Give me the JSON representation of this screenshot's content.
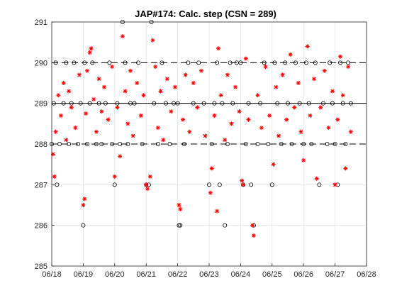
{
  "chart_data": {
    "type": "scatter",
    "title": "JAP#174: Calc. step (CSN = 289)",
    "xlabel": "",
    "ylabel": "",
    "x_ticks": [
      "06/18",
      "06/19",
      "06/20",
      "06/21",
      "06/22",
      "06/23",
      "06/24",
      "06/25",
      "06/26",
      "06/27",
      "06/28"
    ],
    "xlim": [
      "06/18",
      "06/28"
    ],
    "y_ticks": [
      285,
      286,
      287,
      288,
      289,
      290,
      291
    ],
    "ylim": [
      285,
      291
    ],
    "grid": true,
    "legend": "none",
    "reference_lines": [
      {
        "y": 289,
        "style": "solid",
        "color": "#000000"
      },
      {
        "y": 288,
        "style": "dashed",
        "color": "#000000"
      },
      {
        "y": 290,
        "style": "dashed",
        "color": "#000000"
      }
    ],
    "series": [
      {
        "marker": "circle",
        "color": "#000000",
        "points": [
          [
            "06/18 00:00",
            288
          ],
          [
            "06/18 01:30",
            289
          ],
          [
            "06/18 03:00",
            290
          ],
          [
            "06/18 04:00",
            287
          ],
          [
            "06/18 06:00",
            288
          ],
          [
            "06/18 09:00",
            289
          ],
          [
            "06/18 11:00",
            290
          ],
          [
            "06/18 13:00",
            288
          ],
          [
            "06/18 15:00",
            289
          ],
          [
            "06/18 17:00",
            290
          ],
          [
            "06/18 20:00",
            288
          ],
          [
            "06/18 22:00",
            289
          ],
          [
            "06/19 00:00",
            286
          ],
          [
            "06/19 01:00",
            290
          ],
          [
            "06/19 03:00",
            288
          ],
          [
            "06/19 05:00",
            289
          ],
          [
            "06/19 07:00",
            290
          ],
          [
            "06/19 10:00",
            288
          ],
          [
            "06/19 12:00",
            289
          ],
          [
            "06/19 14:00",
            288
          ],
          [
            "06/19 17:00",
            289
          ],
          [
            "06/19 20:00",
            290
          ],
          [
            "06/19 22:00",
            288
          ],
          [
            "06/20 00:00",
            287
          ],
          [
            "06/20 02:00",
            289
          ],
          [
            "06/20 04:00",
            288
          ],
          [
            "06/20 06:00",
            291
          ],
          [
            "06/20 08:00",
            290
          ],
          [
            "06/20 10:00",
            288
          ],
          [
            "06/20 12:00",
            289
          ],
          [
            "06/20 15:00",
            289
          ],
          [
            "06/20 18:00",
            290
          ],
          [
            "06/20 21:00",
            288
          ],
          [
            "06/21 00:00",
            287
          ],
          [
            "06/21 02:00",
            287
          ],
          [
            "06/21 04:00",
            291
          ],
          [
            "06/21 06:00",
            289
          ],
          [
            "06/21 09:00",
            288
          ],
          [
            "06/21 12:00",
            290
          ],
          [
            "06/21 15:00",
            289
          ],
          [
            "06/21 18:00",
            288
          ],
          [
            "06/21 21:00",
            289
          ],
          [
            "06/22 00:00",
            289
          ],
          [
            "06/22 01:00",
            286
          ],
          [
            "06/22 02:00",
            286
          ],
          [
            "06/22 05:00",
            288
          ],
          [
            "06/22 08:00",
            290
          ],
          [
            "06/22 12:00",
            289
          ],
          [
            "06/22 16:00",
            290
          ],
          [
            "06/22 20:00",
            289
          ],
          [
            "06/23 00:00",
            287
          ],
          [
            "06/23 02:00",
            288
          ],
          [
            "06/23 04:00",
            289
          ],
          [
            "06/23 06:00",
            290
          ],
          [
            "06/23 08:00",
            287
          ],
          [
            "06/23 10:00",
            289
          ],
          [
            "06/23 12:00",
            286
          ],
          [
            "06/23 14:00",
            288
          ],
          [
            "06/23 16:00",
            290
          ],
          [
            "06/23 18:00",
            289
          ],
          [
            "06/23 21:00",
            290
          ],
          [
            "06/24 00:00",
            290
          ],
          [
            "06/24 02:00",
            287
          ],
          [
            "06/24 04:00",
            288
          ],
          [
            "06/24 06:00",
            289
          ],
          [
            "06/24 08:00",
            287
          ],
          [
            "06/24 10:00",
            286
          ],
          [
            "06/24 13:00",
            288
          ],
          [
            "06/24 15:00",
            289
          ],
          [
            "06/24 18:00",
            290
          ],
          [
            "06/24 21:00",
            288
          ],
          [
            "06/25 00:00",
            287
          ],
          [
            "06/25 02:00",
            290
          ],
          [
            "06/25 04:00",
            289
          ],
          [
            "06/25 07:00",
            288
          ],
          [
            "06/25 10:00",
            290
          ],
          [
            "06/25 12:00",
            289
          ],
          [
            "06/25 15:00",
            288
          ],
          [
            "06/25 18:00",
            290
          ],
          [
            "06/25 21:00",
            289
          ],
          [
            "06/26 00:00",
            288
          ],
          [
            "06/26 02:00",
            290
          ],
          [
            "06/26 04:00",
            289
          ],
          [
            "06/26 06:00",
            288
          ],
          [
            "06/26 09:00",
            290
          ],
          [
            "06/26 12:00",
            287
          ],
          [
            "06/26 15:00",
            289
          ],
          [
            "06/26 18:00",
            288
          ],
          [
            "06/26 20:00",
            290
          ],
          [
            "06/26 22:00",
            289
          ],
          [
            "06/27 00:00",
            288
          ],
          [
            "06/27 02:00",
            287
          ],
          [
            "06/27 04:00",
            290
          ],
          [
            "06/27 06:00",
            289
          ],
          [
            "06/27 08:00",
            288
          ],
          [
            "06/27 10:00",
            290
          ],
          [
            "06/27 12:00",
            289
          ]
        ]
      },
      {
        "marker": "asterisk",
        "color": "#ff0000",
        "points": [
          [
            "06/18 01:00",
            287.75
          ],
          [
            "06/18 02:00",
            287.2
          ],
          [
            "06/18 03:00",
            288.3
          ],
          [
            "06/18 05:00",
            289.2
          ],
          [
            "06/18 07:00",
            288.7
          ],
          [
            "06/18 09:00",
            289.5
          ],
          [
            "06/18 11:00",
            288.1
          ],
          [
            "06/18 13:00",
            289.3
          ],
          [
            "06/18 15:00",
            288.9
          ],
          [
            "06/18 18:00",
            288.4
          ],
          [
            "06/18 21:00",
            289.7
          ],
          [
            "06/19 00:00",
            286.5
          ],
          [
            "06/19 01:00",
            286.65
          ],
          [
            "06/19 02:00",
            288.75
          ],
          [
            "06/19 03:00",
            289.8
          ],
          [
            "06/19 05:00",
            290.25
          ],
          [
            "06/19 06:00",
            290.35
          ],
          [
            "06/19 08:00",
            289.1
          ],
          [
            "06/19 10:00",
            288.3
          ],
          [
            "06/19 12:00",
            289.6
          ],
          [
            "06/19 14:00",
            288.8
          ],
          [
            "06/19 16:00",
            289.4
          ],
          [
            "06/19 19:00",
            288.6
          ],
          [
            "06/19 22:00",
            289.9
          ],
          [
            "06/20 00:00",
            287.2
          ],
          [
            "06/20 02:00",
            288.9
          ],
          [
            "06/20 04:00",
            287.7
          ],
          [
            "06/20 06:00",
            290.65
          ],
          [
            "06/20 08:00",
            289.3
          ],
          [
            "06/20 10:00",
            288.5
          ],
          [
            "06/20 12:00",
            289.8
          ],
          [
            "06/20 14:00",
            288.2
          ],
          [
            "06/20 17:00",
            289.5
          ],
          [
            "06/20 20:00",
            288.7
          ],
          [
            "06/20 22:00",
            289.2
          ],
          [
            "06/21 00:00",
            287.0
          ],
          [
            "06/21 01:00",
            286.9
          ],
          [
            "06/21 03:00",
            287.2
          ],
          [
            "06/21 05:00",
            290.55
          ],
          [
            "06/21 07:00",
            289.9
          ],
          [
            "06/21 09:00",
            288.4
          ],
          [
            "06/21 11:00",
            289.3
          ],
          [
            "06/21 13:00",
            288.1
          ],
          [
            "06/21 16:00",
            289.6
          ],
          [
            "06/21 19:00",
            288.8
          ],
          [
            "06/21 22:00",
            289.4
          ],
          [
            "06/22 01:00",
            286.5
          ],
          [
            "06/22 02:00",
            286.4
          ],
          [
            "06/22 04:00",
            288.6
          ],
          [
            "06/22 06:00",
            289.7
          ],
          [
            "06/22 09:00",
            288.3
          ],
          [
            "06/22 12:00",
            289.5
          ],
          [
            "06/22 15:00",
            288.9
          ],
          [
            "06/22 18:00",
            289.8
          ],
          [
            "06/22 21:00",
            288.2
          ],
          [
            "06/23 01:00",
            286.8
          ],
          [
            "06/23 02:00",
            287.4
          ],
          [
            "06/23 04:00",
            288.7
          ],
          [
            "06/23 06:00",
            286.35
          ],
          [
            "06/23 07:00",
            290.35
          ],
          [
            "06/23 09:00",
            289.2
          ],
          [
            "06/23 12:00",
            288.1
          ],
          [
            "06/23 14:00",
            289.7
          ],
          [
            "06/23 17:00",
            288.5
          ],
          [
            "06/23 20:00",
            289.4
          ],
          [
            "06/23 23:00",
            288.8
          ],
          [
            "06/24 01:00",
            287.1
          ],
          [
            "06/24 02:00",
            287.0
          ],
          [
            "06/24 04:00",
            290.1
          ],
          [
            "06/24 06:00",
            288.6
          ],
          [
            "06/24 09:00",
            286.0
          ],
          [
            "06/24 10:00",
            285.75
          ],
          [
            "06/24 13:00",
            289.2
          ],
          [
            "06/24 16:00",
            288.4
          ],
          [
            "06/24 19:00",
            289.9
          ],
          [
            "06/24 22:00",
            288.7
          ],
          [
            "06/25 01:00",
            287.5
          ],
          [
            "06/25 03:00",
            289.4
          ],
          [
            "06/25 05:00",
            288.2
          ],
          [
            "06/25 08:00",
            289.7
          ],
          [
            "06/25 11:00",
            288.6
          ],
          [
            "06/25 14:00",
            290.2
          ],
          [
            "06/25 17:00",
            288.9
          ],
          [
            "06/25 20:00",
            289.5
          ],
          [
            "06/25 22:00",
            288.3
          ],
          [
            "06/26 00:00",
            287.6
          ],
          [
            "06/26 03:00",
            290.4
          ],
          [
            "06/26 05:00",
            288.7
          ],
          [
            "06/26 08:00",
            289.6
          ],
          [
            "06/26 10:00",
            287.15
          ],
          [
            "06/26 13:00",
            288.9
          ],
          [
            "06/26 16:00",
            289.8
          ],
          [
            "06/26 19:00",
            288.4
          ],
          [
            "06/26 22:00",
            289.3
          ],
          [
            "06/27 00:00",
            287.0
          ],
          [
            "06/27 02:00",
            288.6
          ],
          [
            "06/27 04:00",
            290.15
          ],
          [
            "06/27 06:00",
            289.2
          ],
          [
            "06/27 08:00",
            287.4
          ],
          [
            "06/27 10:00",
            289.9
          ],
          [
            "06/27 12:00",
            288.3
          ]
        ]
      }
    ]
  }
}
